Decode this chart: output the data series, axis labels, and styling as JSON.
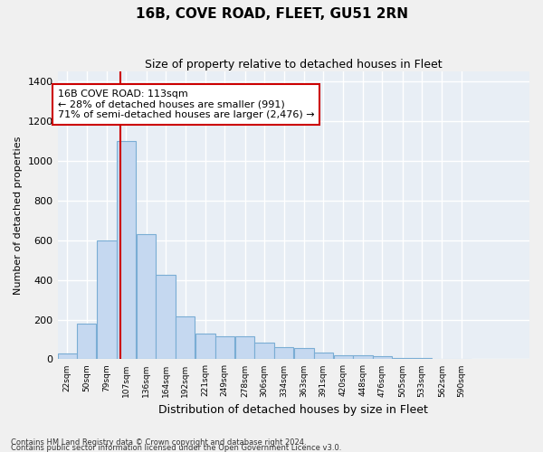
{
  "title": "16B, COVE ROAD, FLEET, GU51 2RN",
  "subtitle": "Size of property relative to detached houses in Fleet",
  "xlabel": "Distribution of detached houses by size in Fleet",
  "ylabel": "Number of detached properties",
  "bar_color": "#c5d8f0",
  "bar_edge_color": "#7aadd4",
  "background_color": "#e8eef5",
  "figure_color": "#f0f0f0",
  "grid_color": "#ffffff",
  "annotation_text": "16B COVE ROAD: 113sqm\n← 28% of detached houses are smaller (991)\n71% of semi-detached houses are larger (2,476) →",
  "vline_color": "#cc0000",
  "annotation_box_color": "#ffffff",
  "annotation_box_edge": "#cc0000",
  "footer_line1": "Contains HM Land Registry data © Crown copyright and database right 2024.",
  "footer_line2": "Contains public sector information licensed under the Open Government Licence v3.0.",
  "categories": [
    "22sqm",
    "50sqm",
    "79sqm",
    "107sqm",
    "136sqm",
    "164sqm",
    "192sqm",
    "221sqm",
    "249sqm",
    "278sqm",
    "306sqm",
    "334sqm",
    "363sqm",
    "391sqm",
    "420sqm",
    "448sqm",
    "476sqm",
    "505sqm",
    "533sqm",
    "562sqm",
    "590sqm"
  ],
  "values": [
    30,
    180,
    600,
    1100,
    630,
    425,
    215,
    130,
    115,
    115,
    85,
    60,
    55,
    35,
    20,
    18,
    15,
    5,
    5,
    4,
    0
  ],
  "bin_starts": [
    22,
    50,
    79,
    107,
    136,
    164,
    192,
    221,
    249,
    278,
    306,
    334,
    363,
    391,
    420,
    448,
    476,
    505,
    533,
    562,
    590
  ],
  "bin_width": 28,
  "property_sqm": 113,
  "ylim": [
    0,
    1450
  ],
  "yticks": [
    0,
    200,
    400,
    600,
    800,
    1000,
    1200,
    1400
  ]
}
